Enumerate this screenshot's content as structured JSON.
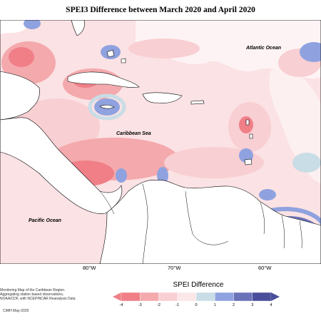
{
  "title": "SPEI3 Difference between March 2020 and April 2020",
  "labels": {
    "atlantic": "Atlantic Ocean",
    "caribbean": "Caribbean Sea",
    "pacific": "Pacific Ocean"
  },
  "longitudes": [
    "80°W",
    "70°W",
    "60°W"
  ],
  "credits": [
    "Monitoring Map of the Caribbean Region.",
    "Aggregating station based observations,",
    "NOAA/CDF, with NCEP/NCAR Reanalysis Data"
  ],
  "stamp": "CIMH May-2020",
  "legend": {
    "title": "SPEI Difference",
    "ticks": [
      "-4",
      "-3",
      "-2",
      "-1",
      "0",
      "1",
      "2",
      "3",
      "4"
    ],
    "colors": [
      "#f07f87",
      "#f4a9ad",
      "#f8cfd2",
      "#fbe6e8",
      "#ffffff",
      "#c9dde6",
      "#8fa2df",
      "#6a72b8",
      "#4a4e9a"
    ]
  }
}
